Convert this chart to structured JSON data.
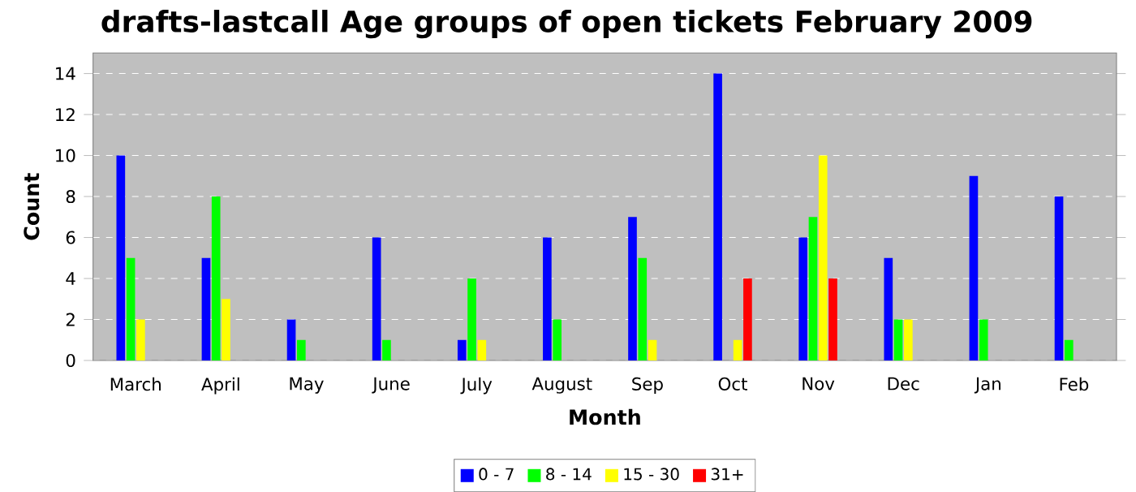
{
  "chart_data": {
    "type": "bar",
    "title": "drafts-lastcall Age groups of open tickets February 2009",
    "xlabel": "Month",
    "ylabel": "Count",
    "categories": [
      "March",
      "April",
      "May",
      "June",
      "July",
      "August",
      "Sep",
      "Oct",
      "Nov",
      "Dec",
      "Jan",
      "Feb"
    ],
    "series": [
      {
        "name": "0 - 7",
        "color": "#0000ff",
        "values": [
          10,
          5,
          2,
          6,
          1,
          6,
          7,
          14,
          6,
          5,
          9,
          8
        ]
      },
      {
        "name": "8 - 14",
        "color": "#00ff00",
        "values": [
          5,
          8,
          1,
          1,
          4,
          2,
          5,
          0,
          7,
          2,
          2,
          1
        ]
      },
      {
        "name": "15 - 30",
        "color": "#ffff00",
        "values": [
          2,
          3,
          0,
          0,
          1,
          0,
          1,
          1,
          10,
          2,
          0,
          0
        ]
      },
      {
        "name": "31+",
        "color": "#ff0000",
        "values": [
          0,
          0,
          0,
          0,
          0,
          0,
          0,
          4,
          4,
          0,
          0,
          0
        ]
      }
    ],
    "ylim": [
      0,
      15
    ],
    "yticks": [
      0,
      2,
      4,
      6,
      8,
      10,
      12,
      14
    ],
    "grid": "y",
    "legend": "bottom"
  }
}
